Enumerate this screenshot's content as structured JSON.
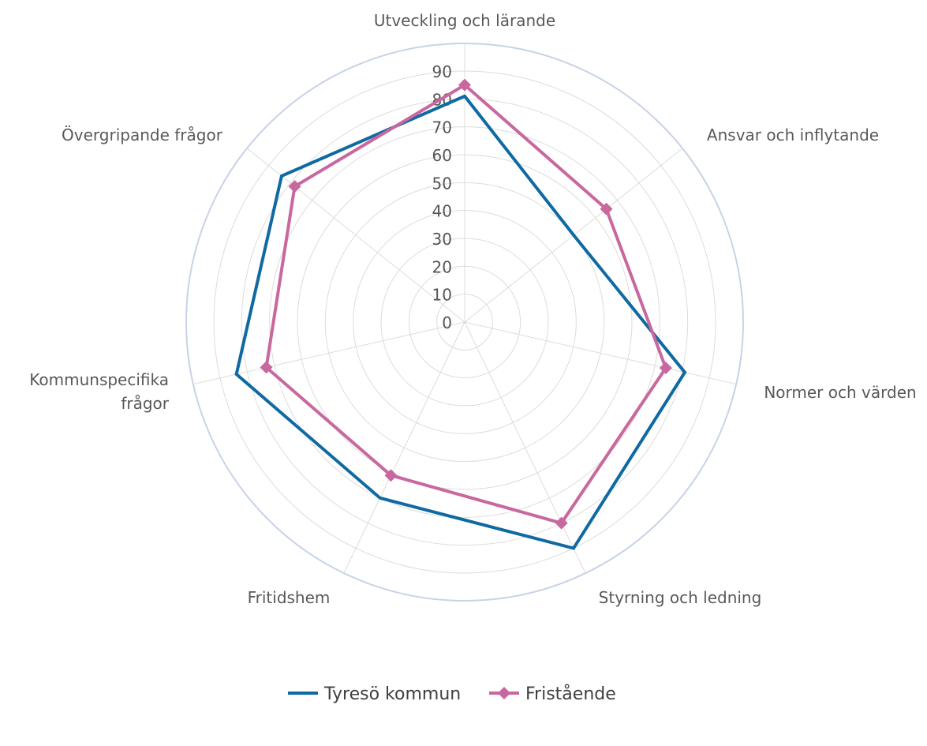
{
  "chart_data": {
    "type": "radar",
    "categories": [
      "Utveckling och lärande",
      "Ansvar och inflytande",
      "Normer och värden",
      "Styrning och ledning",
      "Fritidshem",
      "Kommunspecifika frågor",
      "Övergripande frågor"
    ],
    "series": [
      {
        "name": "Tyresö kommun",
        "color": "#0f6aa3",
        "marker": "none",
        "values": [
          81,
          50,
          81,
          90,
          70,
          84,
          84
        ]
      },
      {
        "name": "Fristående",
        "color": "#c8689f",
        "marker": "diamond",
        "values": [
          85,
          65,
          74,
          80,
          61,
          73,
          78
        ]
      }
    ],
    "r_ticks": [
      "0",
      "10",
      "20",
      "30",
      "40",
      "50",
      "60",
      "70",
      "80",
      "90"
    ],
    "rlim": [
      0,
      90
    ],
    "grid": true,
    "legend_position": "bottom"
  }
}
